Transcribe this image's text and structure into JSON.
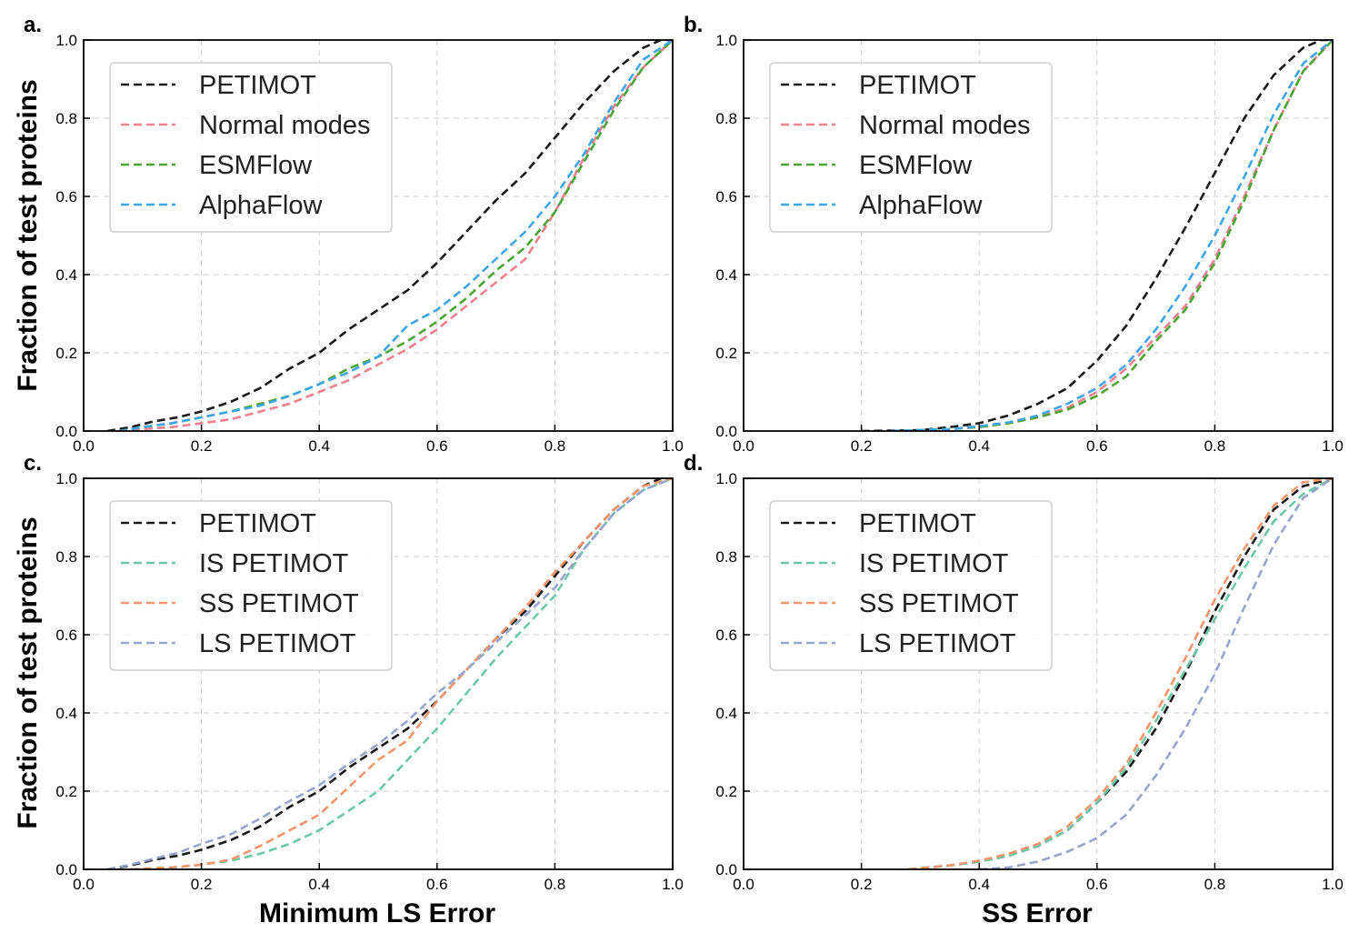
{
  "figure": {
    "y_axis_label": "Fraction of test proteins",
    "x_axis_label_left": "Minimum LS Error",
    "x_axis_label_right": "SS Error"
  },
  "chart_data": [
    {
      "panel": "a.",
      "type": "line",
      "xlim": [
        0.0,
        1.0
      ],
      "ylim": [
        0.0,
        1.0
      ],
      "xticks": [
        "0.0",
        "0.2",
        "0.4",
        "0.6",
        "0.8",
        "1.0"
      ],
      "yticks": [
        "0.0",
        "0.2",
        "0.4",
        "0.6",
        "0.8",
        "1.0"
      ],
      "grid": true,
      "legend": "top-left",
      "series": [
        {
          "name": "PETIMOT",
          "color": "#1a1a1a",
          "x": [
            0.04,
            0.08,
            0.12,
            0.16,
            0.2,
            0.25,
            0.3,
            0.35,
            0.4,
            0.45,
            0.5,
            0.55,
            0.6,
            0.65,
            0.7,
            0.75,
            0.8,
            0.85,
            0.9,
            0.95,
            0.98,
            1.0
          ],
          "y": [
            0.0,
            0.01,
            0.025,
            0.035,
            0.05,
            0.075,
            0.11,
            0.16,
            0.2,
            0.26,
            0.31,
            0.36,
            0.43,
            0.51,
            0.59,
            0.66,
            0.75,
            0.84,
            0.92,
            0.98,
            1.0,
            1.0
          ]
        },
        {
          "name": "Normal modes",
          "color": "#f08090",
          "x": [
            0.06,
            0.1,
            0.15,
            0.2,
            0.25,
            0.3,
            0.35,
            0.4,
            0.45,
            0.5,
            0.55,
            0.6,
            0.65,
            0.7,
            0.75,
            0.8,
            0.85,
            0.9,
            0.95,
            1.0
          ],
          "y": [
            0.0,
            0.005,
            0.01,
            0.02,
            0.03,
            0.05,
            0.07,
            0.1,
            0.13,
            0.17,
            0.21,
            0.26,
            0.32,
            0.38,
            0.44,
            0.56,
            0.7,
            0.83,
            0.93,
            1.0
          ]
        },
        {
          "name": "ESMFlow",
          "color": "#4aa532",
          "x": [
            0.06,
            0.1,
            0.15,
            0.2,
            0.25,
            0.3,
            0.35,
            0.4,
            0.45,
            0.5,
            0.55,
            0.6,
            0.65,
            0.7,
            0.75,
            0.8,
            0.85,
            0.9,
            0.95,
            1.0
          ],
          "y": [
            0.0,
            0.01,
            0.02,
            0.035,
            0.05,
            0.07,
            0.09,
            0.12,
            0.16,
            0.19,
            0.23,
            0.28,
            0.34,
            0.41,
            0.47,
            0.56,
            0.69,
            0.82,
            0.93,
            1.0
          ]
        },
        {
          "name": "AlphaFlow",
          "color": "#3ea6e8",
          "x": [
            0.06,
            0.1,
            0.15,
            0.2,
            0.25,
            0.3,
            0.35,
            0.4,
            0.45,
            0.5,
            0.55,
            0.6,
            0.65,
            0.7,
            0.75,
            0.8,
            0.85,
            0.9,
            0.95,
            1.0
          ],
          "y": [
            0.0,
            0.01,
            0.02,
            0.035,
            0.05,
            0.065,
            0.09,
            0.12,
            0.15,
            0.19,
            0.27,
            0.31,
            0.37,
            0.44,
            0.51,
            0.6,
            0.71,
            0.84,
            0.95,
            1.0
          ]
        }
      ]
    },
    {
      "panel": "b.",
      "type": "line",
      "xlim": [
        0.0,
        1.0
      ],
      "ylim": [
        0.0,
        1.0
      ],
      "xticks": [
        "0.0",
        "0.2",
        "0.4",
        "0.6",
        "0.8",
        "1.0"
      ],
      "yticks": [
        "0.0",
        "0.2",
        "0.4",
        "0.6",
        "0.8",
        "1.0"
      ],
      "grid": true,
      "legend": "top-left",
      "series": [
        {
          "name": "PETIMOT",
          "color": "#1a1a1a",
          "x": [
            0.2,
            0.3,
            0.35,
            0.4,
            0.45,
            0.5,
            0.55,
            0.6,
            0.65,
            0.7,
            0.75,
            0.8,
            0.85,
            0.9,
            0.95,
            0.98,
            1.0
          ],
          "y": [
            0.0,
            0.002,
            0.01,
            0.02,
            0.04,
            0.07,
            0.11,
            0.18,
            0.27,
            0.39,
            0.52,
            0.66,
            0.8,
            0.91,
            0.98,
            1.0,
            1.0
          ]
        },
        {
          "name": "Normal modes",
          "color": "#f08090",
          "x": [
            0.25,
            0.35,
            0.4,
            0.45,
            0.5,
            0.55,
            0.6,
            0.65,
            0.7,
            0.75,
            0.8,
            0.85,
            0.9,
            0.95,
            1.0
          ],
          "y": [
            0.0,
            0.005,
            0.012,
            0.02,
            0.035,
            0.06,
            0.1,
            0.16,
            0.24,
            0.32,
            0.44,
            0.6,
            0.77,
            0.92,
            1.0
          ]
        },
        {
          "name": "ESMFlow",
          "color": "#4aa532",
          "x": [
            0.25,
            0.35,
            0.4,
            0.45,
            0.5,
            0.55,
            0.6,
            0.65,
            0.7,
            0.75,
            0.8,
            0.85,
            0.9,
            0.95,
            1.0
          ],
          "y": [
            0.0,
            0.005,
            0.01,
            0.02,
            0.035,
            0.055,
            0.09,
            0.14,
            0.23,
            0.31,
            0.43,
            0.59,
            0.77,
            0.92,
            1.0
          ]
        },
        {
          "name": "AlphaFlow",
          "color": "#3ea6e8",
          "x": [
            0.25,
            0.35,
            0.4,
            0.45,
            0.5,
            0.55,
            0.6,
            0.65,
            0.7,
            0.75,
            0.8,
            0.85,
            0.9,
            0.95,
            1.0
          ],
          "y": [
            0.0,
            0.005,
            0.012,
            0.022,
            0.04,
            0.07,
            0.11,
            0.17,
            0.26,
            0.37,
            0.5,
            0.65,
            0.81,
            0.94,
            1.0
          ]
        }
      ]
    },
    {
      "panel": "c.",
      "type": "line",
      "xlim": [
        0.0,
        1.0
      ],
      "ylim": [
        0.0,
        1.0
      ],
      "xticks": [
        "0.0",
        "0.2",
        "0.4",
        "0.6",
        "0.8",
        "1.0"
      ],
      "yticks": [
        "0.0",
        "0.2",
        "0.4",
        "0.6",
        "0.8",
        "1.0"
      ],
      "grid": true,
      "legend": "top-left",
      "series": [
        {
          "name": "PETIMOT",
          "color": "#1a1a1a",
          "x": [
            0.04,
            0.08,
            0.12,
            0.16,
            0.2,
            0.25,
            0.3,
            0.35,
            0.4,
            0.45,
            0.5,
            0.55,
            0.6,
            0.65,
            0.7,
            0.75,
            0.8,
            0.85,
            0.9,
            0.95,
            0.98,
            1.0
          ],
          "y": [
            0.0,
            0.01,
            0.025,
            0.035,
            0.05,
            0.075,
            0.11,
            0.16,
            0.2,
            0.26,
            0.31,
            0.36,
            0.43,
            0.51,
            0.59,
            0.66,
            0.75,
            0.84,
            0.92,
            0.98,
            1.0,
            1.0
          ]
        },
        {
          "name": "IS PETIMOT",
          "color": "#6cc7a6",
          "x": [
            0.08,
            0.15,
            0.2,
            0.25,
            0.3,
            0.35,
            0.4,
            0.45,
            0.5,
            0.55,
            0.6,
            0.65,
            0.7,
            0.75,
            0.8,
            0.85,
            0.9,
            0.95,
            1.0
          ],
          "y": [
            0.0,
            0.005,
            0.012,
            0.022,
            0.04,
            0.065,
            0.1,
            0.15,
            0.2,
            0.28,
            0.36,
            0.45,
            0.54,
            0.62,
            0.7,
            0.82,
            0.91,
            0.97,
            1.0
          ]
        },
        {
          "name": "SS PETIMOT",
          "color": "#f4966a",
          "x": [
            0.08,
            0.15,
            0.2,
            0.25,
            0.3,
            0.35,
            0.4,
            0.45,
            0.5,
            0.55,
            0.6,
            0.65,
            0.7,
            0.75,
            0.8,
            0.85,
            0.9,
            0.95,
            1.0
          ],
          "y": [
            0.0,
            0.005,
            0.012,
            0.025,
            0.06,
            0.1,
            0.14,
            0.21,
            0.28,
            0.33,
            0.43,
            0.51,
            0.59,
            0.67,
            0.76,
            0.84,
            0.92,
            0.98,
            1.0
          ]
        },
        {
          "name": "LS PETIMOT",
          "color": "#98a4cc",
          "x": [
            0.04,
            0.08,
            0.12,
            0.16,
            0.2,
            0.25,
            0.3,
            0.35,
            0.4,
            0.45,
            0.5,
            0.55,
            0.6,
            0.65,
            0.7,
            0.75,
            0.8,
            0.85,
            0.9,
            0.95,
            1.0
          ],
          "y": [
            0.0,
            0.012,
            0.028,
            0.042,
            0.065,
            0.09,
            0.13,
            0.175,
            0.215,
            0.27,
            0.32,
            0.38,
            0.45,
            0.51,
            0.58,
            0.65,
            0.72,
            0.82,
            0.91,
            0.97,
            1.0
          ]
        }
      ]
    },
    {
      "panel": "d.",
      "type": "line",
      "xlim": [
        0.0,
        1.0
      ],
      "ylim": [
        0.0,
        1.0
      ],
      "xticks": [
        "0.0",
        "0.2",
        "0.4",
        "0.6",
        "0.8",
        "1.0"
      ],
      "yticks": [
        "0.0",
        "0.2",
        "0.4",
        "0.6",
        "0.8",
        "1.0"
      ],
      "grid": true,
      "legend": "top-left",
      "series": [
        {
          "name": "PETIMOT",
          "color": "#1a1a1a",
          "x": [
            0.28,
            0.35,
            0.4,
            0.45,
            0.5,
            0.55,
            0.6,
            0.65,
            0.7,
            0.75,
            0.8,
            0.85,
            0.9,
            0.95,
            1.0
          ],
          "y": [
            0.0,
            0.01,
            0.02,
            0.035,
            0.06,
            0.1,
            0.17,
            0.25,
            0.36,
            0.5,
            0.66,
            0.8,
            0.92,
            0.98,
            1.0
          ]
        },
        {
          "name": "IS PETIMOT",
          "color": "#6cc7a6",
          "x": [
            0.28,
            0.35,
            0.4,
            0.45,
            0.5,
            0.55,
            0.6,
            0.65,
            0.7,
            0.75,
            0.8,
            0.85,
            0.9,
            0.95,
            1.0
          ],
          "y": [
            0.0,
            0.01,
            0.02,
            0.035,
            0.06,
            0.1,
            0.17,
            0.26,
            0.38,
            0.51,
            0.64,
            0.77,
            0.89,
            0.96,
            1.0
          ]
        },
        {
          "name": "SS PETIMOT",
          "color": "#f4966a",
          "x": [
            0.28,
            0.35,
            0.4,
            0.45,
            0.5,
            0.55,
            0.6,
            0.65,
            0.7,
            0.75,
            0.8,
            0.85,
            0.9,
            0.95,
            1.0
          ],
          "y": [
            0.0,
            0.01,
            0.022,
            0.04,
            0.065,
            0.11,
            0.18,
            0.27,
            0.4,
            0.54,
            0.69,
            0.82,
            0.93,
            0.99,
            1.0
          ]
        },
        {
          "name": "LS PETIMOT",
          "color": "#98a4cc",
          "x": [
            0.4,
            0.45,
            0.5,
            0.55,
            0.6,
            0.65,
            0.7,
            0.75,
            0.8,
            0.85,
            0.9,
            0.95,
            1.0
          ],
          "y": [
            0.0,
            0.005,
            0.02,
            0.045,
            0.08,
            0.14,
            0.24,
            0.36,
            0.5,
            0.67,
            0.83,
            0.95,
            1.0
          ]
        }
      ]
    }
  ]
}
